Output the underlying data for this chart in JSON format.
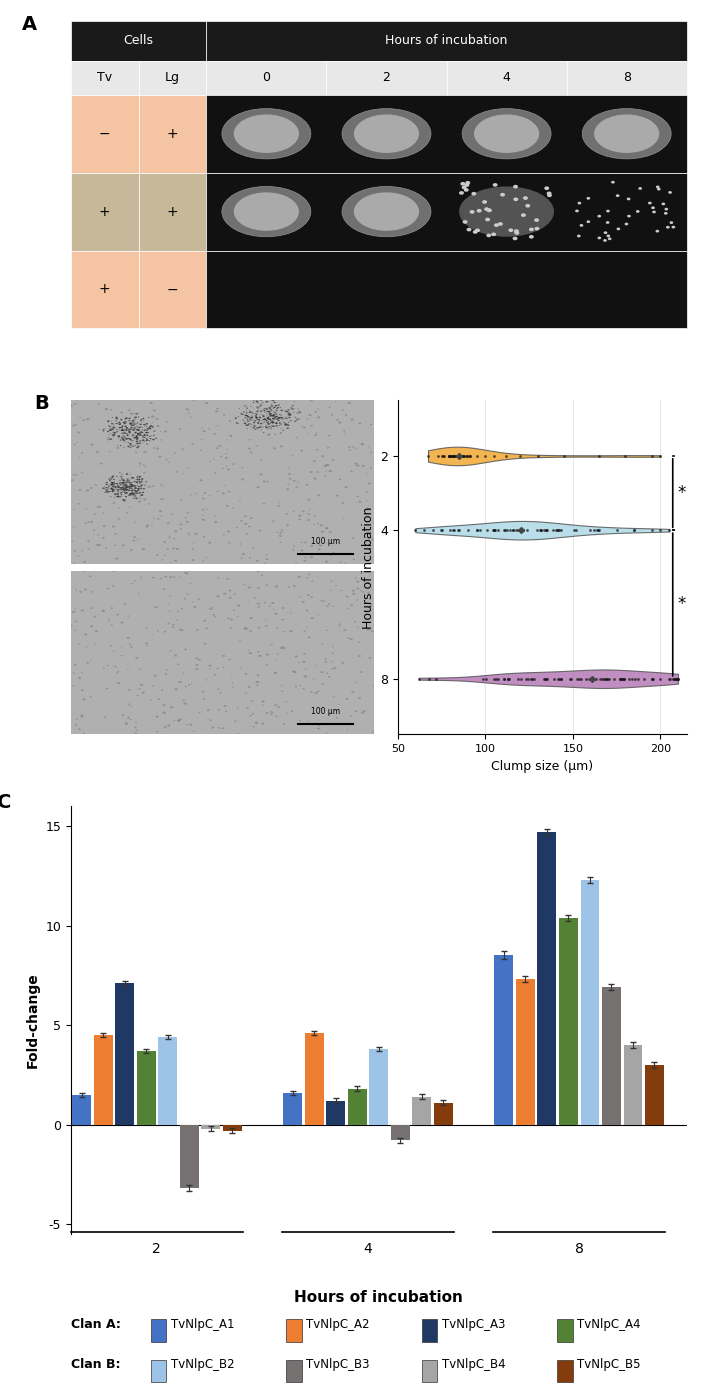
{
  "panel_A": {
    "header_bg": "#1a1a1a",
    "cells_bg_row0": "#f5c5a3",
    "cells_bg_row1": "#c8b89a",
    "cells_bg_row2": "#f5c5a3",
    "subhdr_bg": "#e8e8e8",
    "img_bg": "#111111",
    "row_labels": [
      [
        "−",
        "+"
      ],
      [
        "+",
        "+"
      ],
      [
        "+",
        "−"
      ]
    ],
    "time_labels": [
      "0",
      "2",
      "4",
      "8"
    ],
    "header_text_color": "#ffffff",
    "label_text_color": "#000000"
  },
  "panel_B": {
    "violin_colors": [
      "#f0a832",
      "#add8e6",
      "#b57ab5"
    ],
    "xlabel": "Clump size (μm)",
    "ylabel": "Hours of incubation",
    "yticks": [
      2,
      4,
      8
    ],
    "xlim": [
      50,
      210
    ],
    "grid_color": "#dddddd"
  },
  "panel_C": {
    "series": {
      "TvNlpC_A1": {
        "color": "#4472c4",
        "values": [
          1.5,
          1.6,
          8.5
        ],
        "errors": [
          0.1,
          0.1,
          0.2
        ]
      },
      "TvNlpC_A2": {
        "color": "#ed7d31",
        "values": [
          4.5,
          4.6,
          7.3
        ],
        "errors": [
          0.12,
          0.12,
          0.15
        ]
      },
      "TvNlpC_A3": {
        "color": "#1f3864",
        "values": [
          7.1,
          1.2,
          14.7
        ],
        "errors": [
          0.12,
          0.12,
          0.15
        ]
      },
      "TvNlpC_A4": {
        "color": "#548235",
        "values": [
          3.7,
          1.8,
          10.4
        ],
        "errors": [
          0.12,
          0.12,
          0.15
        ]
      },
      "TvNlpC_B2": {
        "color": "#9dc3e6",
        "values": [
          4.4,
          3.8,
          12.3
        ],
        "errors": [
          0.12,
          0.12,
          0.15
        ]
      },
      "TvNlpC_B3": {
        "color": "#767171",
        "values": [
          -3.2,
          -0.8,
          6.9
        ],
        "errors": [
          0.15,
          0.12,
          0.15
        ]
      },
      "TvNlpC_B4": {
        "color": "#a5a5a5",
        "values": [
          -0.2,
          1.4,
          4.0
        ],
        "errors": [
          0.12,
          0.12,
          0.15
        ]
      },
      "TvNlpC_B5": {
        "color": "#843c0c",
        "values": [
          -0.3,
          1.1,
          3.0
        ],
        "errors": [
          0.12,
          0.12,
          0.15
        ]
      }
    },
    "ylim": [
      -5,
      16
    ],
    "yticks": [
      -5,
      0,
      5,
      10,
      15
    ],
    "ylabel": "Fold-change",
    "xlabel": "Hours of incubation",
    "group_labels": [
      "2",
      "4",
      "8"
    ],
    "legend": {
      "clan_A": [
        "TvNlpC_A1",
        "TvNlpC_A2",
        "TvNlpC_A3",
        "TvNlpC_A4"
      ],
      "clan_B": [
        "TvNlpC_B2",
        "TvNlpC_B3",
        "TvNlpC_B4",
        "TvNlpC_B5"
      ]
    }
  }
}
